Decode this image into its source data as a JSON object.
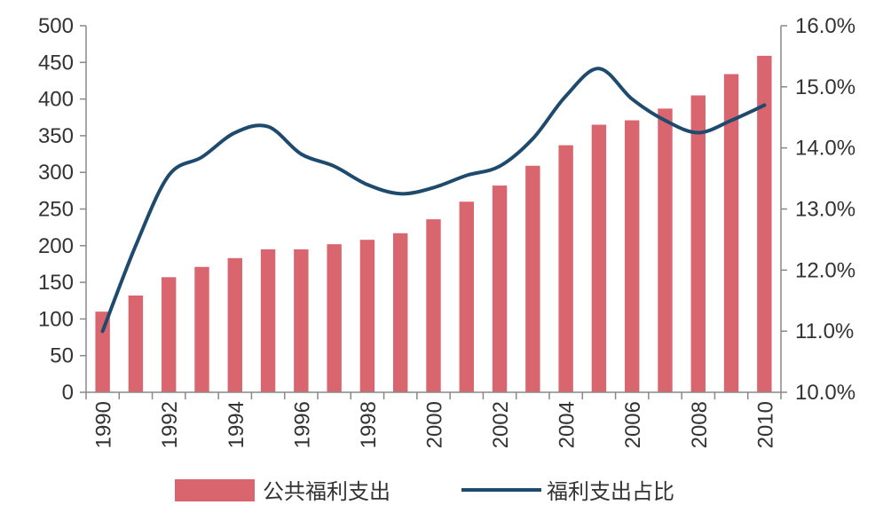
{
  "chart_data": {
    "type": "bar+line",
    "title": "",
    "x": [
      1990,
      1991,
      1992,
      1993,
      1994,
      1995,
      1996,
      1997,
      1998,
      1999,
      2000,
      2001,
      2002,
      2003,
      2004,
      2005,
      2006,
      2007,
      2008,
      2009,
      2010
    ],
    "x_tick_labels": [
      "1990",
      "1992",
      "1994",
      "1996",
      "1998",
      "2000",
      "2002",
      "2004",
      "2006",
      "2008",
      "2010"
    ],
    "left_axis": {
      "ylim": [
        0,
        500
      ],
      "ticks": [
        "0",
        "50",
        "100",
        "150",
        "200",
        "250",
        "300",
        "350",
        "400",
        "450",
        "500"
      ]
    },
    "right_axis": {
      "ylim": [
        10.0,
        16.0
      ],
      "ticks": [
        "10.0%",
        "11.0%",
        "12.0%",
        "13.0%",
        "14.0%",
        "15.0%",
        "16.0%"
      ]
    },
    "series": [
      {
        "name": "公共福利支出",
        "type": "bar",
        "axis": "left",
        "color": "#d9666e",
        "values": [
          110,
          132,
          157,
          171,
          183,
          195,
          195,
          202,
          208,
          217,
          236,
          260,
          282,
          309,
          337,
          365,
          371,
          387,
          405,
          434,
          459
        ]
      },
      {
        "name": "福利支出占比",
        "type": "line",
        "axis": "right",
        "color": "#1e4a6e",
        "values": [
          11.0,
          12.4,
          13.55,
          13.85,
          14.25,
          14.35,
          13.9,
          13.7,
          13.4,
          13.25,
          13.35,
          13.55,
          13.7,
          14.15,
          14.85,
          15.3,
          14.8,
          14.45,
          14.25,
          14.45,
          14.7
        ]
      }
    ],
    "legend_position": "bottom"
  }
}
